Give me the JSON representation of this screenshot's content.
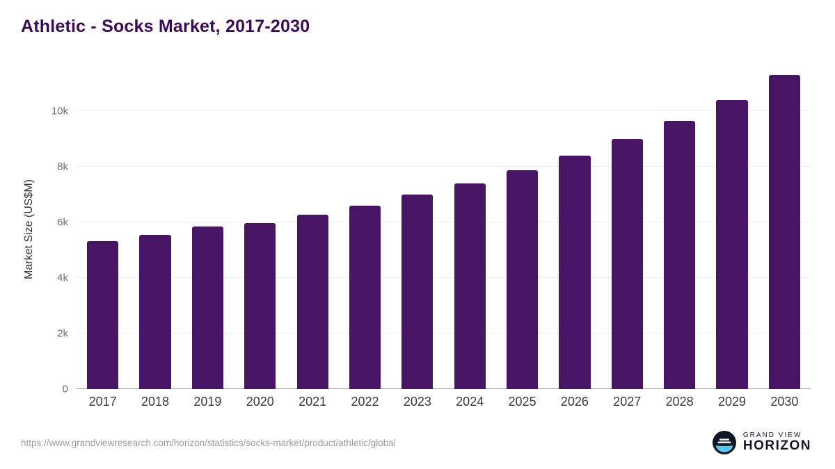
{
  "chart_data": {
    "type": "bar",
    "title": "Athletic - Socks Market, 2017-2030",
    "categories": [
      "2017",
      "2018",
      "2019",
      "2020",
      "2021",
      "2022",
      "2023",
      "2024",
      "2025",
      "2026",
      "2027",
      "2028",
      "2029",
      "2030"
    ],
    "values": [
      5330,
      5560,
      5860,
      5980,
      6280,
      6600,
      7000,
      7400,
      7880,
      8400,
      9000,
      9650,
      10400,
      11300
    ],
    "xlabel": "",
    "ylabel": "Market Size (US$M)",
    "ylim": [
      0,
      11500
    ],
    "yticks": [
      0,
      2000,
      4000,
      6000,
      8000,
      10000
    ],
    "ytick_labels": [
      "0",
      "2k",
      "4k",
      "6k",
      "8k",
      "10k"
    ],
    "grid": "horizontal",
    "legend": "none",
    "bar_color": "#471563"
  },
  "footer": {
    "source_url": "https://www.grandviewresearch.com/horizon/statistics/socks-market/product/athletic/global",
    "brand_line1": "GRAND VIEW",
    "brand_line2": "HORIZON"
  },
  "colors": {
    "title": "#3a0b52",
    "bar": "#471563",
    "grid": "#ececf0",
    "axis_baseline": "#9b9ba3",
    "y_tick_text": "#6e6e78",
    "x_tick_text": "#3a3a44",
    "source_text": "#9b9b9b",
    "logo_blue": "#5bc6e8",
    "logo_dark": "#101726"
  }
}
